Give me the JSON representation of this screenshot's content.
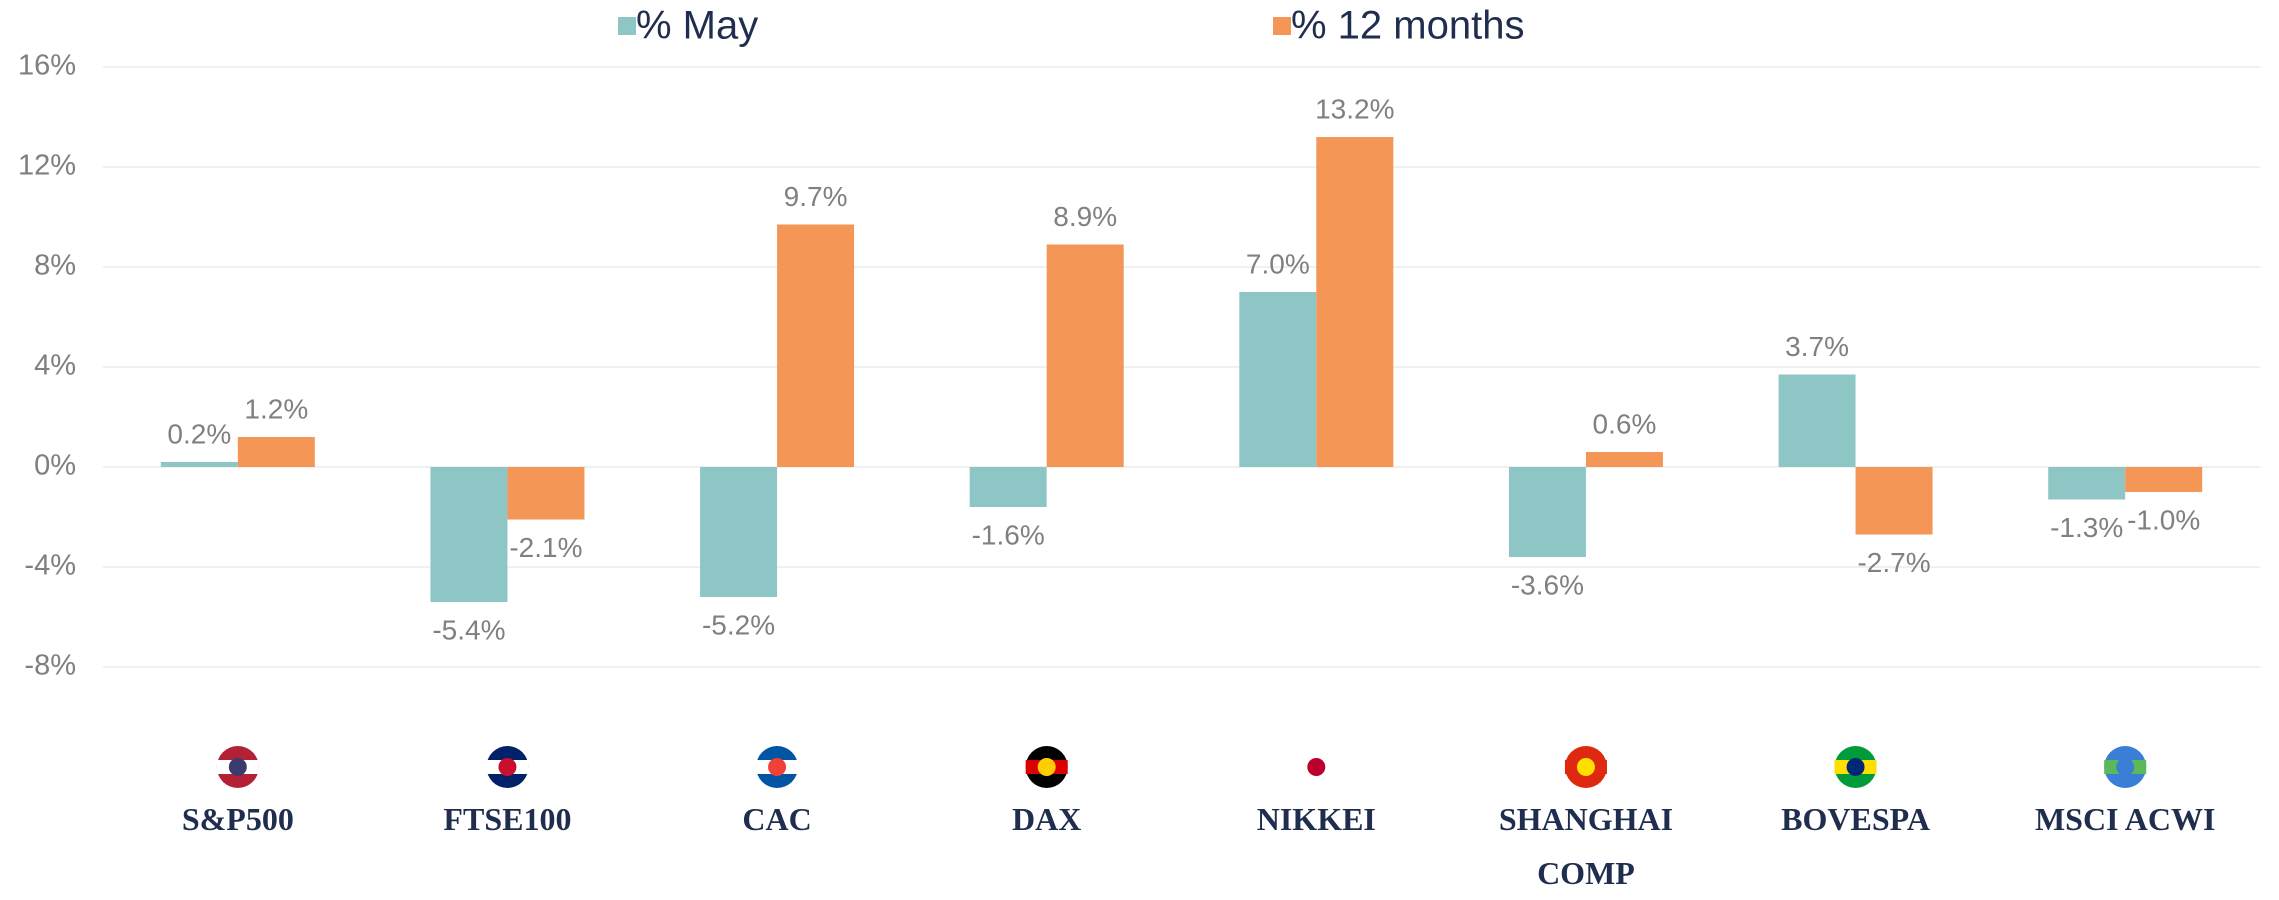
{
  "chart_data": {
    "type": "bar",
    "categories": [
      "S&P500",
      "FTSE100",
      "CAC",
      "DAX",
      "NIKKEI",
      "SHANGHAI COMP",
      "BOVESPA",
      "MSCI ACWI"
    ],
    "series": [
      {
        "name": "% May",
        "color": "#8ec6c5",
        "values": [
          0.2,
          -5.4,
          -5.2,
          -1.6,
          7.0,
          -3.6,
          3.7,
          -1.3
        ],
        "value_labels": [
          "0.2%",
          "-5.4%",
          "-5.2%",
          "-1.6%",
          "7.0%",
          "-3.6%",
          "3.7%",
          "-1.3%"
        ]
      },
      {
        "name": "% 12 months",
        "color": "#f39656",
        "values": [
          1.2,
          -2.1,
          9.7,
          8.9,
          13.2,
          0.6,
          -2.7,
          -1.0
        ],
        "value_labels": [
          "1.2%",
          "-2.1%",
          "9.7%",
          "8.9%",
          "13.2%",
          "0.6%",
          "-2.7%",
          "-1.0%"
        ]
      }
    ],
    "ylim": [
      -8,
      16
    ],
    "yticks": [
      {
        "value": -8,
        "label": "-8%"
      },
      {
        "value": -4,
        "label": "-4%"
      },
      {
        "value": 0,
        "label": "0%"
      },
      {
        "value": 4,
        "label": "4%"
      },
      {
        "value": 8,
        "label": "8%"
      },
      {
        "value": 12,
        "label": "12%"
      },
      {
        "value": 16,
        "label": "16%"
      }
    ],
    "grid": true,
    "legend": "top"
  }
}
